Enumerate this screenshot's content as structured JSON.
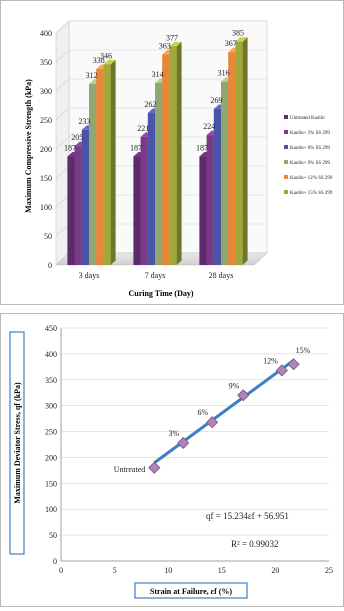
{
  "chart_data": [
    {
      "type": "bar",
      "ylabel": "Maximum Compressive Strength (kPa)",
      "xlabel": "Curing Time (Day)",
      "categories": [
        "3 days",
        "7 days",
        "28 days"
      ],
      "ylim": [
        0,
        400
      ],
      "yticks": [
        0,
        50,
        100,
        150,
        200,
        250,
        300,
        350,
        400
      ],
      "legend_position": "right",
      "series": [
        {
          "name": "Untreated Kaolin",
          "values": [
            187,
            187,
            187
          ],
          "labels": [
            "187",
            "187",
            "187"
          ],
          "color": "#5e2a6b"
        },
        {
          "name": "Kaolin+ 3% SS 299",
          "values": [
            205,
            221,
            224
          ],
          "labels": [
            "205",
            "221",
            "224"
          ],
          "color": "#7a3a8a"
        },
        {
          "name": "Kaolin+ 6% SS 299",
          "values": [
            233,
            262,
            269
          ],
          "labels": [
            "233",
            "262",
            "269"
          ],
          "color": "#4a55a8"
        },
        {
          "name": "Kaolin+ 9% SS 299",
          "values": [
            312,
            314,
            316
          ],
          "labels": [
            "312",
            "314",
            "316"
          ],
          "color": "#8ea870"
        },
        {
          "name": "Kaolin+ 12% SS 299",
          "values": [
            338,
            363,
            367
          ],
          "labels": [
            "338",
            "363",
            "367"
          ],
          "color": "#e8873a"
        },
        {
          "name": "Kaolin+ 15% SS 299",
          "values": [
            346,
            377,
            385
          ],
          "labels": [
            "346",
            "377",
            "385"
          ],
          "color": "#a0a83a"
        }
      ]
    },
    {
      "type": "scatter",
      "ylabel": "Maximum Deviator Stress, qf (kPa)",
      "xlabel": "Strain at Failure, εf (%)",
      "xlim": [
        0,
        25
      ],
      "ylim": [
        0,
        450
      ],
      "xticks": [
        0,
        5,
        10,
        15,
        20,
        25
      ],
      "yticks": [
        0,
        50,
        100,
        150,
        200,
        250,
        300,
        350,
        400,
        450
      ],
      "points": [
        {
          "x": 8.7,
          "y": 180,
          "label": "Untreated"
        },
        {
          "x": 11.4,
          "y": 228,
          "label": "3%"
        },
        {
          "x": 14.1,
          "y": 268,
          "label": "6%"
        },
        {
          "x": 17.0,
          "y": 320,
          "label": "9%"
        },
        {
          "x": 20.6,
          "y": 368,
          "label": "12%"
        },
        {
          "x": 21.7,
          "y": 380,
          "label": "15%"
        }
      ],
      "trendline": {
        "slope": 15.234,
        "intercept": 56.951,
        "x_range": [
          8.7,
          21.7
        ],
        "color": "#3b7fc4"
      },
      "equation": "qf = 15.234εf + 56.951",
      "r_squared": "R² = 0.99032",
      "marker_color": "#b084b8"
    }
  ]
}
